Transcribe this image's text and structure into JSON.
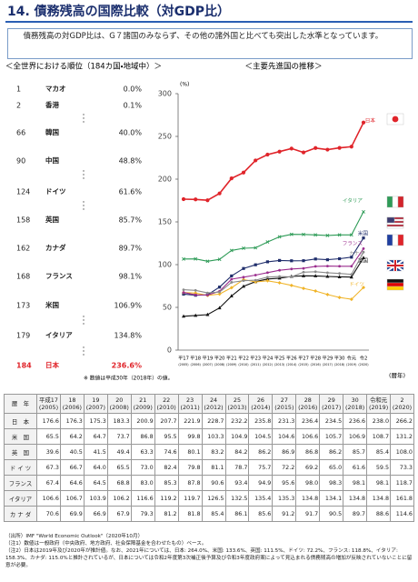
{
  "title": "14. 債務残高の国際比較（対GDP比）",
  "summary": "債務残高の対GDP比は、G７諸国のみならず、その他の諸外国と比べても突出した水準となっています。",
  "ranking": {
    "heading": "＜全世界における順位（184カ国・地域中）＞",
    "rows": [
      {
        "rank": 1,
        "country": "マカオ",
        "value": "0.0%"
      },
      {
        "rank": 2,
        "country": "香港",
        "value": "0.1%"
      },
      {
        "rank": 66,
        "country": "韓国",
        "value": "40.0%"
      },
      {
        "rank": 90,
        "country": "中国",
        "value": "48.8%"
      },
      {
        "rank": 124,
        "country": "ドイツ",
        "value": "61.6%"
      },
      {
        "rank": 158,
        "country": "英国",
        "value": "85.7%"
      },
      {
        "rank": 162,
        "country": "カナダ",
        "value": "89.7%"
      },
      {
        "rank": 168,
        "country": "フランス",
        "value": "98.1%"
      },
      {
        "rank": 173,
        "country": "米国",
        "value": "106.9%"
      },
      {
        "rank": 179,
        "country": "イタリア",
        "value": "134.8%"
      },
      {
        "rank": 184,
        "country": "日本",
        "value": "236.6%",
        "color": "#e0242a"
      }
    ],
    "note": "※ 数値は平成30年（2018年）の値。"
  },
  "chart_data": {
    "type": "line",
    "title": "＜主要先進国の推移＞",
    "y_unit": "(%)",
    "x_label": "(暦年)",
    "categories": [
      "平17",
      "平18",
      "平19",
      "平20",
      "平21",
      "平22",
      "平23",
      "平24",
      "平25",
      "平26",
      "平27",
      "平28",
      "平29",
      "平30",
      "令元",
      "令2"
    ],
    "category_sublabels": [
      "(2005)",
      "(2006)",
      "(2007)",
      "(2008)",
      "(2009)",
      "(2010)",
      "(2011)",
      "(2012)",
      "(2013)",
      "(2014)",
      "(2015)",
      "(2016)",
      "(2017)",
      "(2018)",
      "(2019)",
      "(2020)"
    ],
    "ylim": [
      0,
      300
    ],
    "yticks": [
      0,
      50,
      100,
      150,
      200,
      250,
      300
    ],
    "series": [
      {
        "name": "日本",
        "color": "#e0242a",
        "values": [
          176.6,
          176.3,
          175.3,
          183.3,
          200.9,
          207.7,
          221.9,
          228.7,
          232.2,
          235.8,
          231.3,
          236.4,
          234.5,
          236.6,
          238.0,
          266.2
        ]
      },
      {
        "name": "米国",
        "color": "#1f2d6b",
        "values": [
          65.5,
          64.2,
          64.7,
          73.7,
          86.8,
          95.5,
          99.8,
          103.3,
          104.9,
          104.5,
          104.6,
          106.6,
          105.7,
          106.9,
          108.7,
          131.2
        ]
      },
      {
        "name": "英国",
        "color": "#111111",
        "values": [
          39.6,
          40.5,
          41.5,
          49.4,
          63.3,
          74.6,
          80.1,
          83.2,
          84.2,
          86.2,
          86.9,
          86.8,
          86.2,
          85.7,
          85.4,
          108.0
        ]
      },
      {
        "name": "ドイツ",
        "color": "#f0b429",
        "values": [
          67.3,
          66.7,
          64.0,
          65.5,
          73.0,
          82.4,
          79.8,
          81.1,
          78.7,
          75.7,
          72.2,
          69.2,
          65.0,
          61.6,
          59.5,
          73.3
        ]
      },
      {
        "name": "フランス",
        "color": "#9b2d8e",
        "values": [
          67.4,
          64.6,
          64.5,
          68.8,
          83.0,
          85.3,
          87.8,
          90.6,
          93.4,
          94.9,
          95.6,
          98.0,
          98.3,
          98.1,
          98.1,
          118.7
        ]
      },
      {
        "name": "イタリア",
        "color": "#2e9b57",
        "values": [
          106.6,
          106.7,
          103.9,
          106.2,
          116.6,
          119.2,
          119.7,
          126.5,
          132.5,
          135.4,
          135.3,
          134.8,
          134.1,
          134.8,
          134.8,
          161.8
        ]
      },
      {
        "name": "カナダ",
        "color": "#8a8a8a",
        "values": [
          70.6,
          69.9,
          66.9,
          67.9,
          79.3,
          81.2,
          81.8,
          85.4,
          86.1,
          85.6,
          91.2,
          91.7,
          90.5,
          89.7,
          88.6,
          114.6
        ]
      }
    ]
  },
  "table": {
    "corner": "暦　年",
    "columns": [
      {
        "label": "平成17",
        "sub": "(2005)"
      },
      {
        "label": "18",
        "sub": "(2006)"
      },
      {
        "label": "19",
        "sub": "(2007)"
      },
      {
        "label": "20",
        "sub": "(2008)"
      },
      {
        "label": "21",
        "sub": "(2009)"
      },
      {
        "label": "22",
        "sub": "(2010)"
      },
      {
        "label": "23",
        "sub": "(2011)"
      },
      {
        "label": "24",
        "sub": "(2012)"
      },
      {
        "label": "25",
        "sub": "(2013)"
      },
      {
        "label": "26",
        "sub": "(2014)"
      },
      {
        "label": "27",
        "sub": "(2015)"
      },
      {
        "label": "28",
        "sub": "(2016)"
      },
      {
        "label": "29",
        "sub": "(2017)"
      },
      {
        "label": "30",
        "sub": "(2018)"
      },
      {
        "label": "令和元",
        "sub": "(2019)"
      },
      {
        "label": "2",
        "sub": "(2020)"
      }
    ],
    "rows": [
      {
        "label": "日　本",
        "cells": [
          "176.6",
          "176.3",
          "175.3",
          "183.3",
          "200.9",
          "207.7",
          "221.9",
          "228.7",
          "232.2",
          "235.8",
          "231.3",
          "236.4",
          "234.5",
          "236.6",
          "238.0",
          "266.2"
        ]
      },
      {
        "label": "米　国",
        "cells": [
          "65.5",
          "64.2",
          "64.7",
          "73.7",
          "86.8",
          "95.5",
          "99.8",
          "103.3",
          "104.9",
          "104.5",
          "104.6",
          "106.6",
          "105.7",
          "106.9",
          "108.7",
          "131.2"
        ]
      },
      {
        "label": "英　国",
        "cells": [
          "39.6",
          "40.5",
          "41.5",
          "49.4",
          "63.3",
          "74.6",
          "80.1",
          "83.2",
          "84.2",
          "86.2",
          "86.9",
          "86.8",
          "86.2",
          "85.7",
          "85.4",
          "108.0"
        ]
      },
      {
        "label": "ド イ ツ",
        "cells": [
          "67.3",
          "66.7",
          "64.0",
          "65.5",
          "73.0",
          "82.4",
          "79.8",
          "81.1",
          "78.7",
          "75.7",
          "72.2",
          "69.2",
          "65.0",
          "61.6",
          "59.5",
          "73.3"
        ]
      },
      {
        "label": "フランス",
        "cells": [
          "67.4",
          "64.6",
          "64.5",
          "68.8",
          "83.0",
          "85.3",
          "87.8",
          "90.6",
          "93.4",
          "94.9",
          "95.6",
          "98.0",
          "98.3",
          "98.1",
          "98.1",
          "118.7"
        ]
      },
      {
        "label": "イタリア",
        "cells": [
          "106.6",
          "106.7",
          "103.9",
          "106.2",
          "116.6",
          "119.2",
          "119.7",
          "126.5",
          "132.5",
          "135.4",
          "135.3",
          "134.8",
          "134.1",
          "134.8",
          "134.8",
          "161.8"
        ]
      },
      {
        "label": "カ ナ ダ",
        "cells": [
          "70.6",
          "69.9",
          "66.9",
          "67.9",
          "79.3",
          "81.2",
          "81.8",
          "85.4",
          "86.1",
          "85.6",
          "91.2",
          "91.7",
          "90.5",
          "89.7",
          "88.6",
          "114.6"
        ]
      }
    ]
  },
  "notes": [
    "（出所）IMF \"World Economic Outlook\"（2020年10月）",
    "（注1）数値は一般政府（中央政府、地方政府、社会保障基金を合わせたもの）ベース。",
    "（注2）日本は2019年及び2020年が推計値。なお、2021年については、日本: 264.0%、米国: 133.6%、英国: 111.5%、ドイツ: 72.2%、フランス: 118.8%、イタリア: 158.3%、カナダ: 115.0%と推計されているが、日本については令和2年度第3次補正後予算及び令和3年度政府案によって見込まれる債務残高の増加が反映されていないことに留意が必要。"
  ]
}
